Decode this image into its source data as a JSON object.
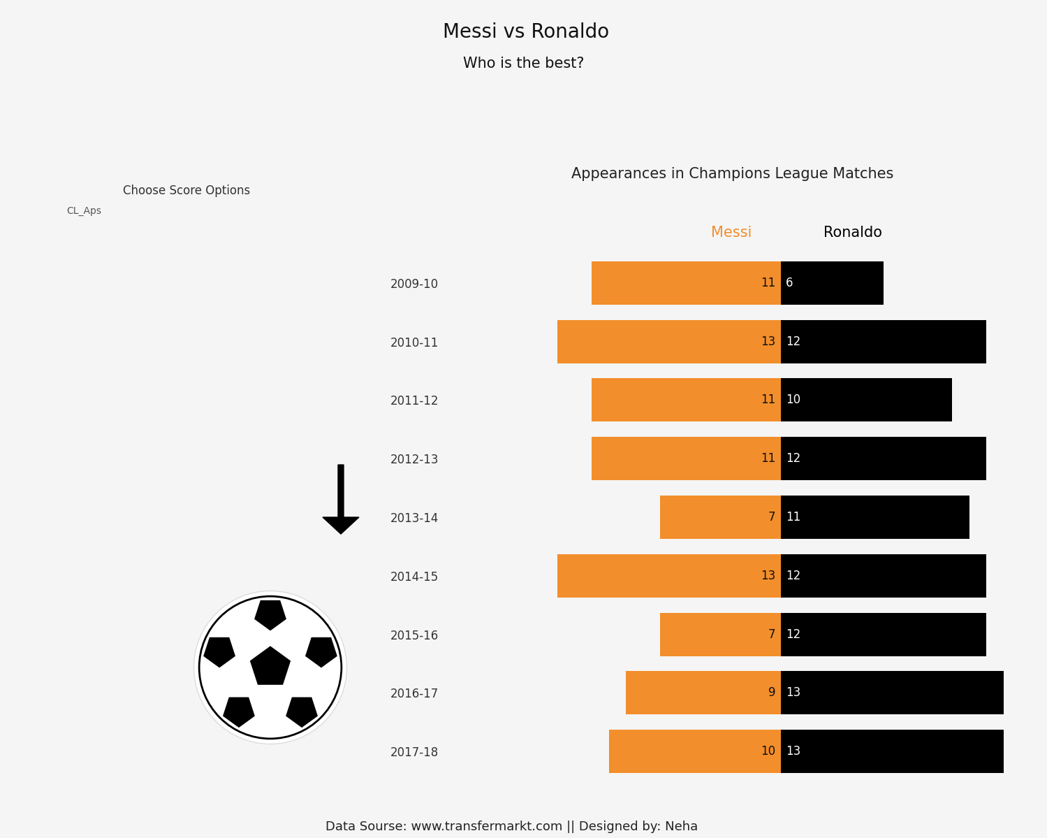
{
  "header": {
    "title": "Messi vs Ronaldo",
    "subtitle": "Who is the best?"
  },
  "controls": {
    "label": "Choose Score Options",
    "value": "CL_Aps"
  },
  "chart_data": {
    "type": "bar",
    "orientation": "horizontal",
    "title": "Appearances in Champions League Matches",
    "categories": [
      "2009-10",
      "2010-11",
      "2011-12",
      "2012-13",
      "2013-14",
      "2014-15",
      "2015-16",
      "2016-17",
      "2017-18"
    ],
    "series": [
      {
        "name": "Messi",
        "color": "#F28E2B",
        "values": [
          11,
          13,
          11,
          11,
          7,
          13,
          7,
          9,
          10
        ]
      },
      {
        "name": "Ronaldo",
        "color": "#000000",
        "values": [
          6,
          12,
          10,
          12,
          11,
          12,
          12,
          13,
          13
        ]
      }
    ],
    "xlim": [
      -13,
      13
    ],
    "data_labels": true,
    "tick_labels": "y"
  },
  "footer": "Data Sourse: www.transfermarkt.com || Designed by: Neha"
}
